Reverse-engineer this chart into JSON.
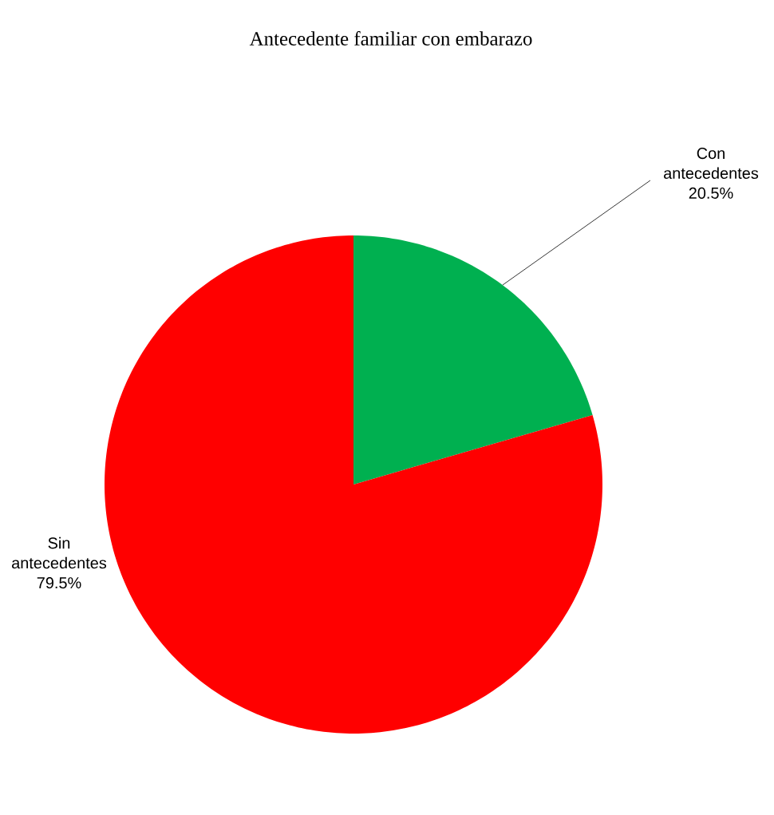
{
  "chart_data": {
    "type": "pie",
    "title": "Antecedente familiar con embarazo",
    "categories": [
      "Con antecedentes",
      "Sin antecedentes"
    ],
    "values": [
      20.5,
      79.5
    ],
    "colors": [
      "#00b050",
      "#ff0000"
    ],
    "value_labels": [
      "20.5%",
      "79.5%"
    ]
  }
}
